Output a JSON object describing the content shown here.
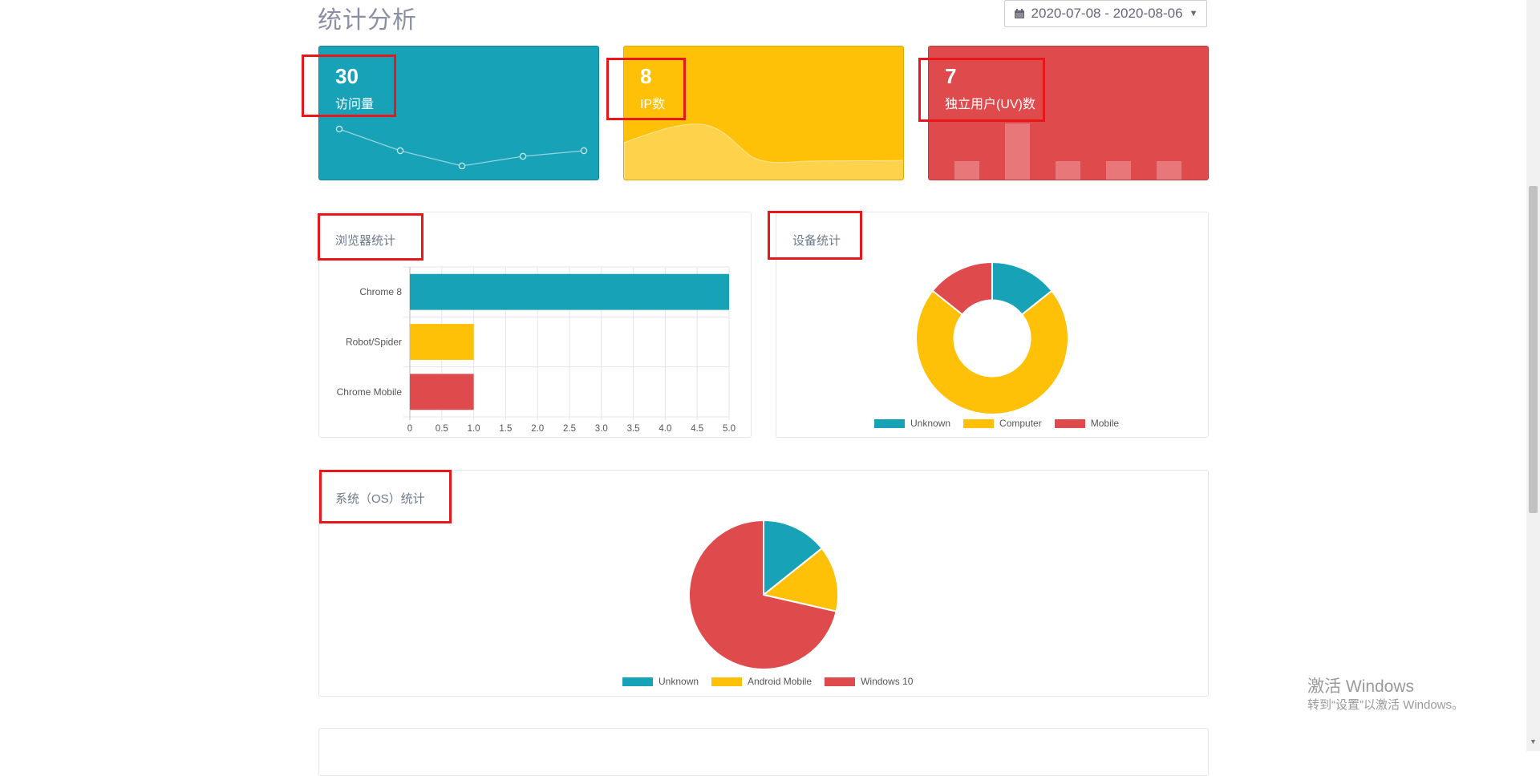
{
  "page": {
    "title": "统计分析",
    "date_range": "2020-07-08 - 2020-08-06"
  },
  "stats": [
    {
      "value": "30",
      "label": "访问量",
      "color": "#17a2b8"
    },
    {
      "value": "8",
      "label": "IP数",
      "color": "#ffc107"
    },
    {
      "value": "7",
      "label": "独立用户(UV)数",
      "color": "#df4a4c"
    }
  ],
  "browser_panel": {
    "title": "浏览器统计"
  },
  "device_panel": {
    "title": "设备统计"
  },
  "os_panel": {
    "title": "系统（OS）统计"
  },
  "colors": {
    "teal": "#17a2b8",
    "yellow": "#ffc107",
    "red": "#df4a4c"
  },
  "chart_data": [
    {
      "type": "line",
      "x": [
        1,
        2,
        3,
        4,
        5
      ],
      "values": [
        5,
        3.3,
        2,
        3,
        3.5
      ]
    },
    {
      "type": "area",
      "x": [
        1,
        2,
        3,
        4,
        5
      ],
      "values": [
        3,
        4,
        1,
        1,
        1
      ]
    },
    {
      "type": "bar",
      "values": [
        1,
        1,
        3,
        1,
        1,
        1
      ]
    },
    {
      "type": "bar",
      "orientation": "horizontal",
      "categories": [
        "Chrome 8",
        "Robot/Spider",
        "Chrome Mobile"
      ],
      "values": [
        5,
        1,
        1
      ],
      "xlim": [
        0,
        5
      ],
      "xticks": [
        "0",
        "0.5",
        "1.0",
        "1.5",
        "2.0",
        "2.5",
        "3.0",
        "3.5",
        "4.0",
        "4.5",
        "5.0"
      ],
      "grid": true
    },
    {
      "type": "pie",
      "donut": true,
      "labels": [
        "Unknown",
        "Computer",
        "Mobile"
      ],
      "values": [
        1,
        5,
        1
      ],
      "legend": "bottom"
    },
    {
      "type": "pie",
      "labels": [
        "Unknown",
        "Android Mobile",
        "Windows 10"
      ],
      "values": [
        1,
        1,
        5
      ],
      "legend": "bottom"
    }
  ],
  "watermark": {
    "line1": "激活 Windows",
    "line2": "转到“设置”以激活 Windows。"
  }
}
